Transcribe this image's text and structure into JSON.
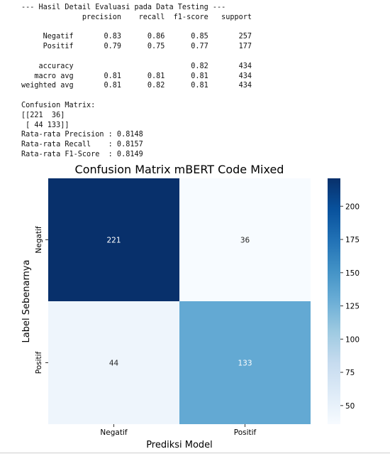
{
  "console": {
    "lines": [
      "--- Hasil Detail Evaluasi pada Data Testing ---",
      "              precision    recall  f1-score   support",
      "",
      "     Negatif       0.83      0.86      0.85       257",
      "     Positif       0.79      0.75      0.77       177",
      "",
      "    accuracy                           0.82       434",
      "   macro avg       0.81      0.81      0.81       434",
      "weighted avg       0.81      0.82      0.81       434",
      "",
      "Confusion Matrix:",
      "[[221  36]",
      " [ 44 133]]",
      "Rata-rata Precision : 0.8148",
      "Rata-rata Recall    : 0.8157",
      "Rata-rata F1-Score  : 0.8149"
    ]
  },
  "chart_data": {
    "type": "heatmap",
    "title": "Confusion Matrix mBERT Code Mixed",
    "xlabel": "Prediksi Model",
    "ylabel": "Label Sebenarnya",
    "x_categories": [
      "Negatif",
      "Positif"
    ],
    "y_categories": [
      "Negatif",
      "Positif"
    ],
    "values": [
      [
        221,
        36
      ],
      [
        44,
        133
      ]
    ],
    "colormap": "Blues",
    "colorbar": {
      "min": 36,
      "max": 221,
      "ticks": [
        50,
        75,
        100,
        125,
        150,
        175,
        200
      ]
    }
  }
}
